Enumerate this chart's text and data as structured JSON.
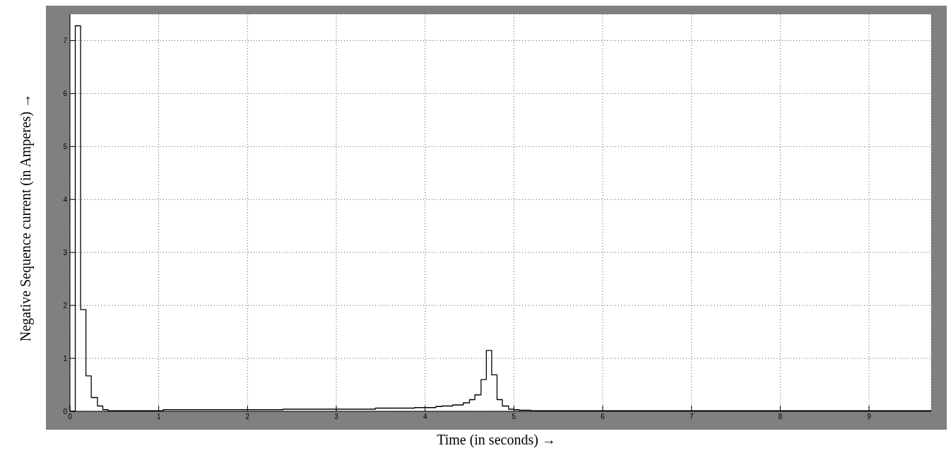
{
  "chart_data": {
    "type": "step",
    "xlabel": "Time (in seconds) →",
    "ylabel": "Negative Sequence current (in Amperes) →",
    "x": [
      0,
      0.06,
      0.12,
      0.18,
      0.24,
      0.31,
      0.37,
      0.43,
      1.05,
      2.4,
      3.44,
      3.88,
      4.12,
      4.19,
      4.31,
      4.43,
      4.5,
      4.56,
      4.63,
      4.69,
      4.75,
      4.81,
      4.87,
      4.94,
      5.0,
      5.06,
      5.19,
      9.7
    ],
    "series": [
      {
        "color": "#000000",
        "values": [
          0,
          7.28,
          1.92,
          0.67,
          0.26,
          0.1,
          0.03,
          0.01,
          0.03,
          0.04,
          0.06,
          0.07,
          0.09,
          0.1,
          0.12,
          0.16,
          0.22,
          0.31,
          0.6,
          1.15,
          0.69,
          0.22,
          0.1,
          0.04,
          0.03,
          0.02,
          0.01,
          0.01
        ]
      }
    ],
    "xlim": [
      0,
      9.7
    ],
    "xticks": [
      0,
      1,
      2,
      3,
      4,
      5,
      6,
      7,
      8,
      9
    ],
    "ylim": [
      0,
      7.5
    ],
    "yticks": [
      0,
      1,
      2,
      3,
      4,
      5,
      6,
      7
    ],
    "grid": true,
    "legend": false,
    "marker": "none",
    "line_style": "solid"
  }
}
